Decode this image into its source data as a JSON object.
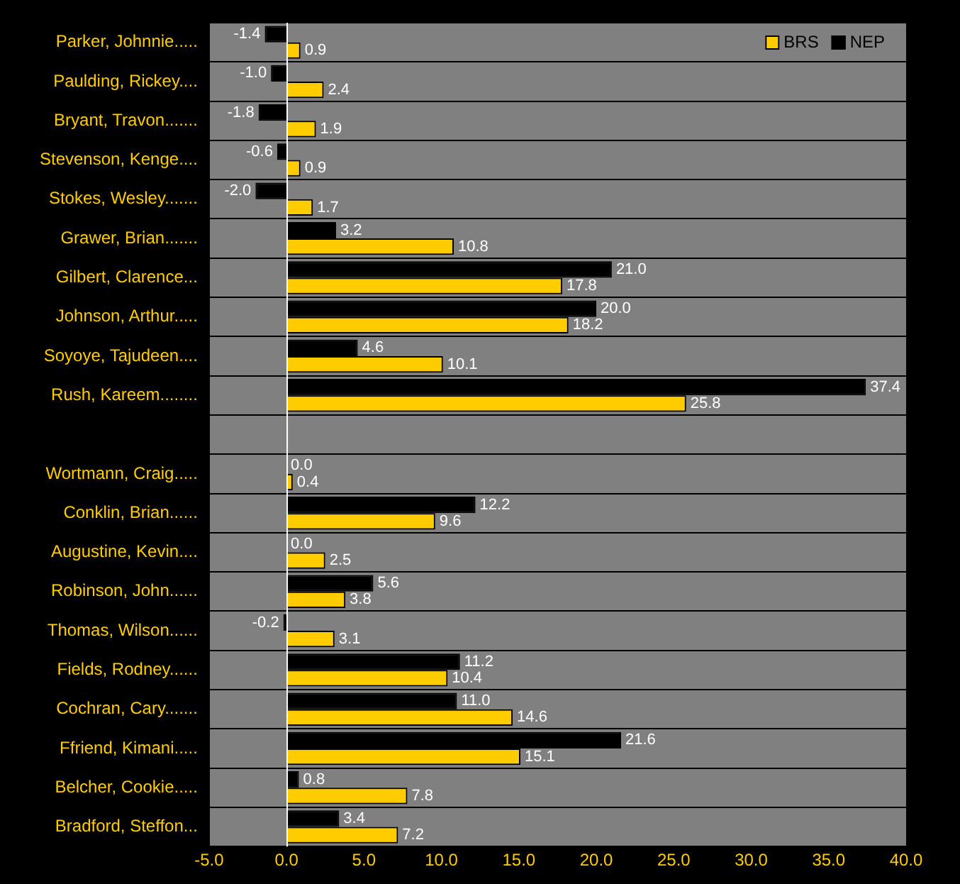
{
  "chart_data": {
    "type": "bar",
    "orientation": "horizontal",
    "categories": [
      "Parker, Johnnie.....",
      "Paulding, Rickey....",
      "Bryant, Travon.......",
      "Stevenson, Kenge....",
      "Stokes, Wesley.......",
      "Grawer, Brian.......",
      "Gilbert, Clarence...",
      "Johnson, Arthur.....",
      "Soyoye, Tajudeen....",
      "Rush, Kareem........",
      null,
      "Wortmann, Craig.....",
      "Conklin, Brian......",
      "Augustine, Kevin....",
      "Robinson, John......",
      "Thomas, Wilson......",
      "Fields, Rodney......",
      "Cochran, Cary.......",
      "Ffriend, Kimani.....",
      "Belcher, Cookie.....",
      "Bradford, Steffon..."
    ],
    "series": [
      {
        "name": "BRS",
        "color": "#ffcc00",
        "values": [
          0.9,
          2.4,
          1.9,
          0.9,
          1.7,
          10.8,
          17.8,
          18.2,
          10.1,
          25.8,
          null,
          0.4,
          9.6,
          2.5,
          3.8,
          3.1,
          10.4,
          14.6,
          15.1,
          7.8,
          7.2
        ],
        "value_labels": [
          "0.9",
          "2.4",
          "1.9",
          "0.9",
          "1.7",
          "10.8",
          "17.8",
          "18.2",
          "10.1",
          "25.8",
          null,
          "0.4",
          "9.6",
          "2.5",
          "3.8",
          "3.1",
          "10.4",
          "14.6",
          "15.1",
          "7.8",
          "7.2"
        ]
      },
      {
        "name": "NEP",
        "color": "#000000",
        "values": [
          -1.4,
          -1.0,
          -1.8,
          -0.6,
          -2.0,
          3.2,
          21.0,
          20.0,
          4.6,
          37.4,
          null,
          0.0,
          12.2,
          0.0,
          5.6,
          -0.2,
          11.2,
          11.0,
          21.6,
          0.8,
          3.4
        ],
        "value_labels": [
          "-1.4",
          "-1.0",
          "-1.8",
          "-0.6",
          "-2.0",
          "3.2",
          "21.0",
          "20.0",
          "4.6",
          "37.4",
          null,
          "0.0",
          "12.2",
          "0.0",
          "5.6",
          "-0.2",
          "11.2",
          "11.0",
          "21.6",
          "0.8",
          "3.4"
        ]
      }
    ],
    "xlim": [
      -5,
      40
    ],
    "xticks": [
      {
        "value": -5,
        "label": "-5.0"
      },
      {
        "value": 0,
        "label": "0.0"
      },
      {
        "value": 5,
        "label": "5.0"
      },
      {
        "value": 10,
        "label": "10.0"
      },
      {
        "value": 15,
        "label": "15.0"
      },
      {
        "value": 20,
        "label": "20.0"
      },
      {
        "value": 25,
        "label": "25.0"
      },
      {
        "value": 30,
        "label": "30.0"
      },
      {
        "value": 35,
        "label": "35.0"
      },
      {
        "value": 40,
        "label": "40.0"
      }
    ],
    "grid": "y",
    "legend": "top right"
  }
}
